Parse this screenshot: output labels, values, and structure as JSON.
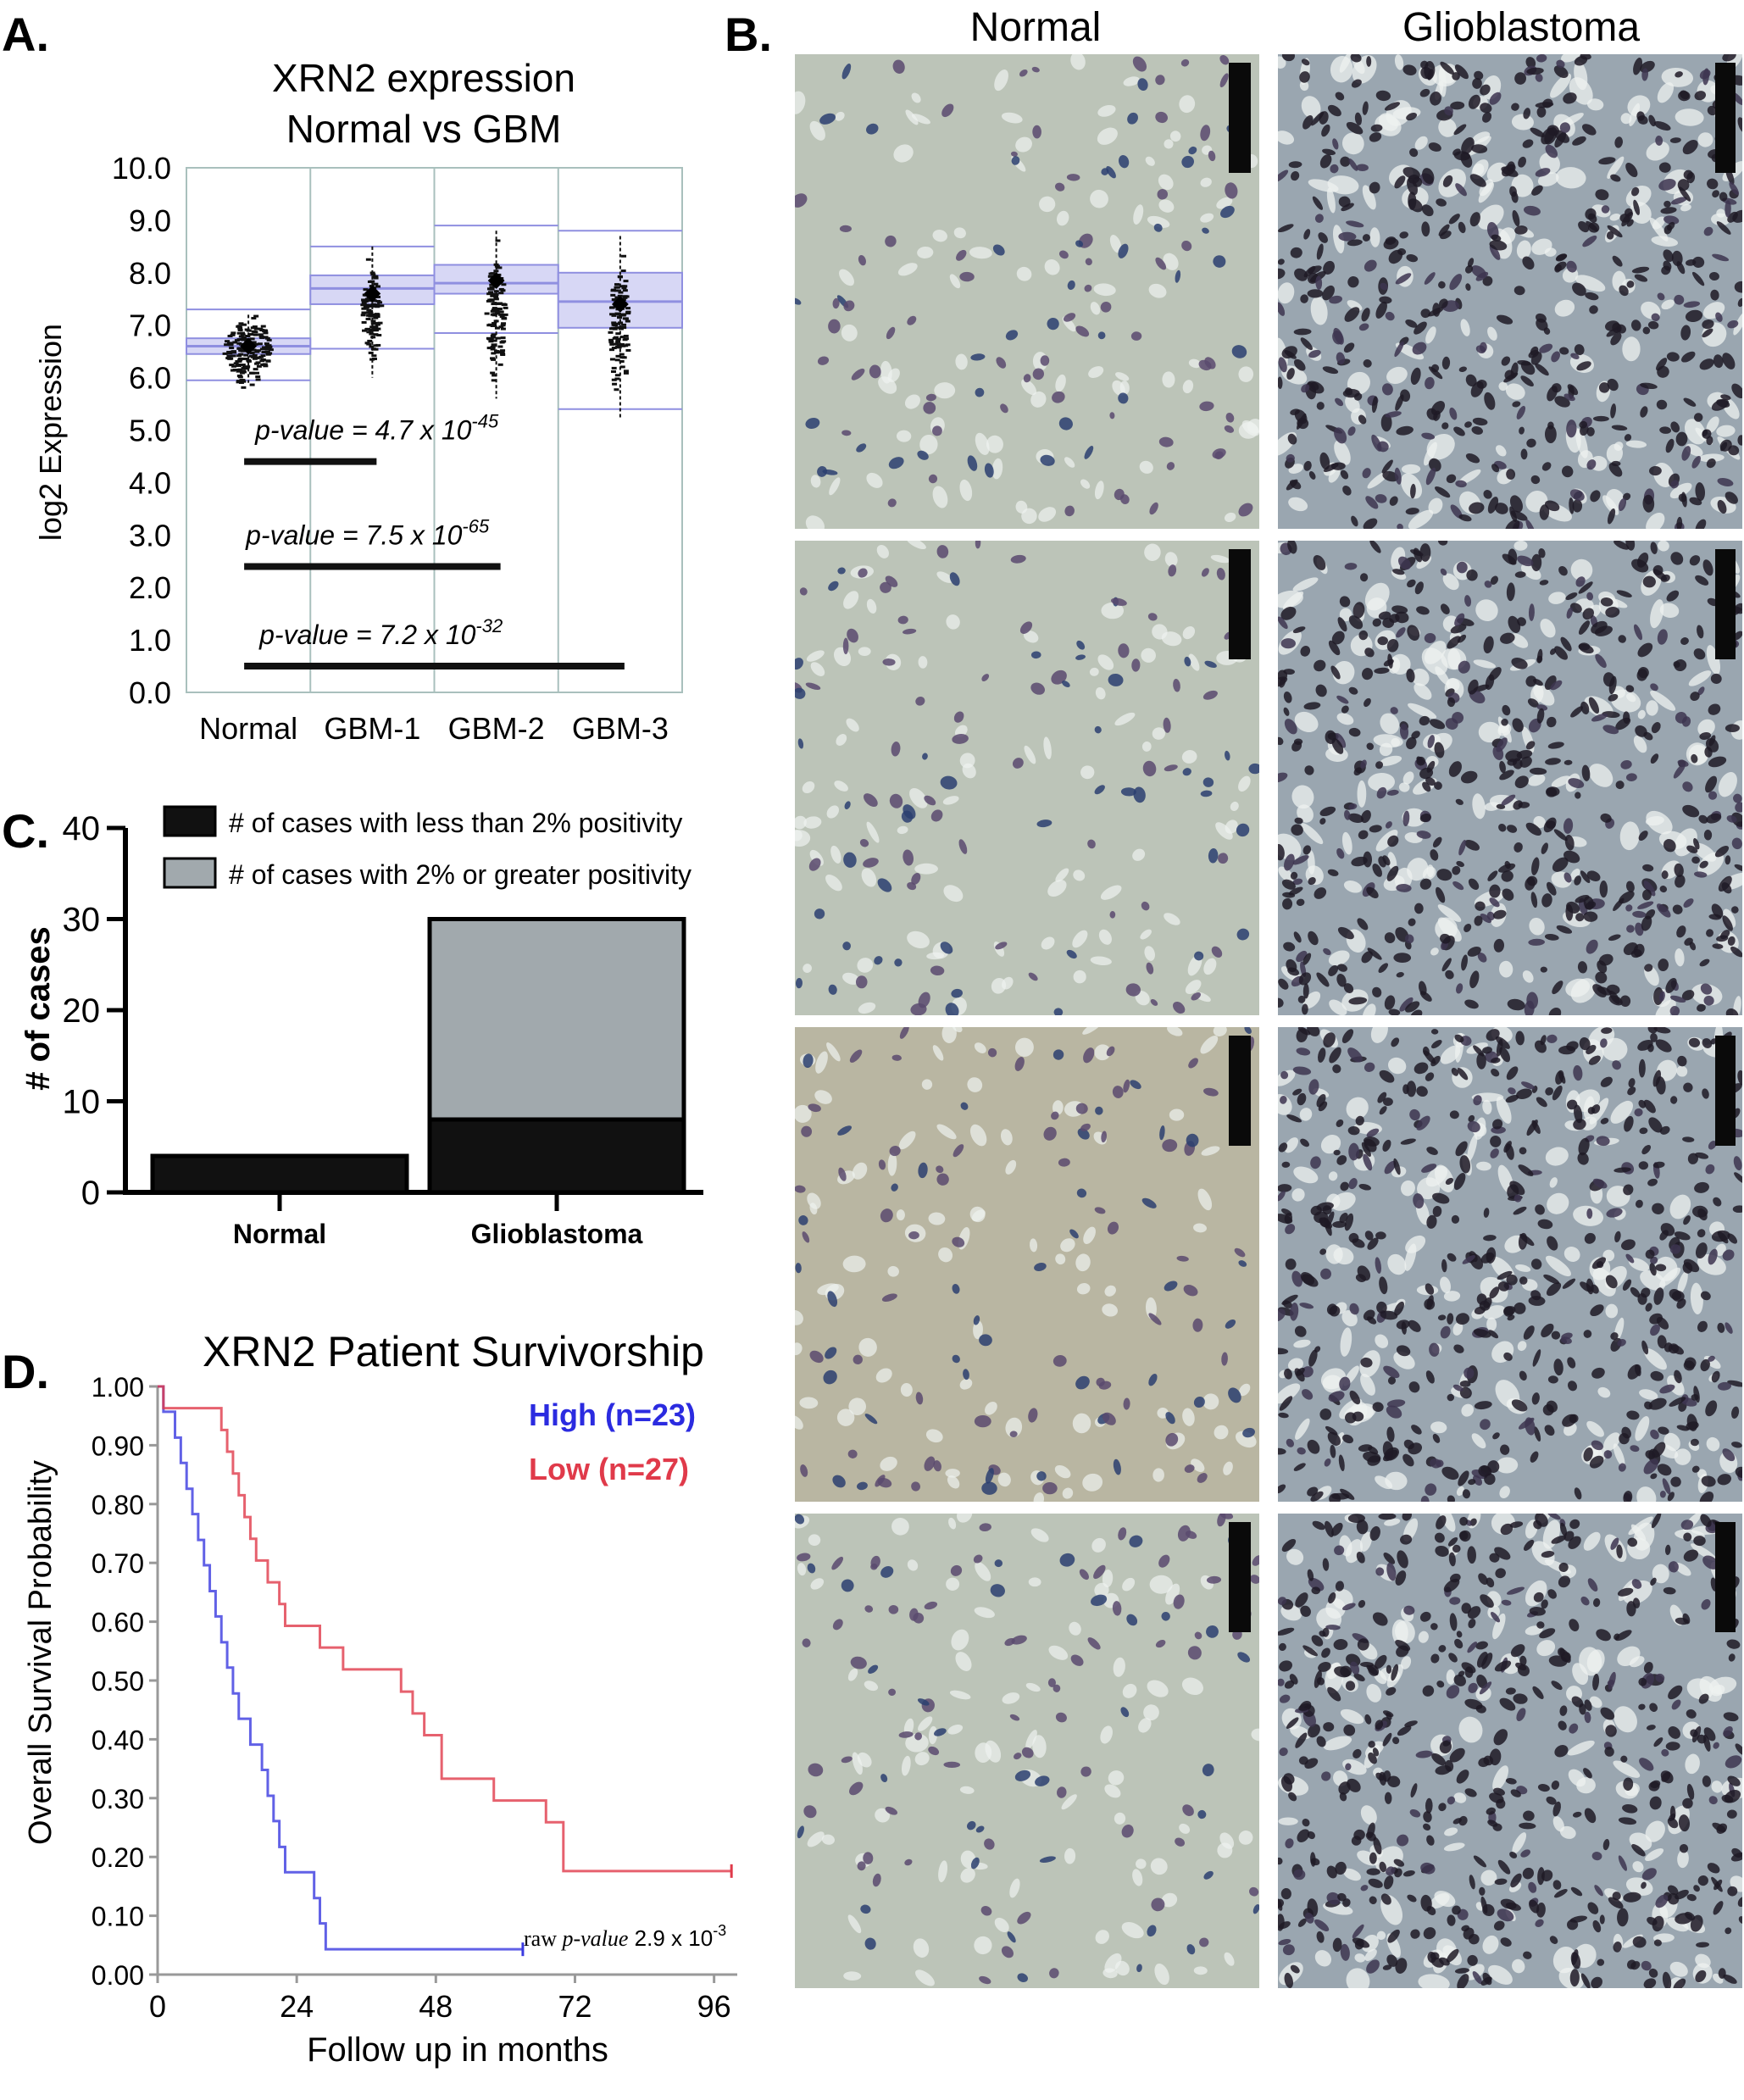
{
  "panels": {
    "a": "A.",
    "b": "B.",
    "c": "C.",
    "d": "D."
  },
  "chart_data": [
    {
      "id": "A",
      "type": "scatter",
      "title": "XRN2 expression",
      "subtitle": "Normal vs GBM",
      "ylabel": "log2 Expression",
      "xlabel": "",
      "ylim": [
        0,
        10
      ],
      "yticks": [
        "0.0",
        "1.0",
        "2.0",
        "3.0",
        "4.0",
        "5.0",
        "6.0",
        "7.0",
        "8.0",
        "9.0",
        "10.0"
      ],
      "categories": [
        "Normal",
        "GBM-1",
        "GBM-2",
        "GBM-3"
      ],
      "boxes": [
        {
          "q1": 6.45,
          "median": 6.6,
          "q3": 6.75,
          "min": 5.95,
          "max": 7.3,
          "center": 6.6
        },
        {
          "q1": 7.4,
          "median": 7.7,
          "q3": 7.95,
          "min": 6.55,
          "max": 8.5,
          "center": 7.6
        },
        {
          "q1": 7.6,
          "median": 7.8,
          "q3": 8.15,
          "min": 6.85,
          "max": 8.9,
          "center": 7.85
        },
        {
          "q1": 6.95,
          "median": 7.45,
          "q3": 8.0,
          "min": 5.4,
          "max": 8.8,
          "center": 7.4
        }
      ],
      "points_range": [
        [
          5.9,
          7.2
        ],
        [
          6.0,
          8.5
        ],
        [
          5.6,
          8.8
        ],
        [
          5.2,
          8.7
        ]
      ],
      "comparisons": [
        {
          "text_pre": "p-value = 4.7 x 10",
          "exp": "-45",
          "y": 4.4,
          "from": 0,
          "to": 1
        },
        {
          "text_pre": "p-value = 7.5 x 10",
          "exp": "-65",
          "y": 2.4,
          "from": 0,
          "to": 2
        },
        {
          "text_pre": "p-value = 7.2 x 10",
          "exp": "-32",
          "y": 0.5,
          "from": 0,
          "to": 3
        }
      ],
      "colors": {
        "box_fill": "#c9c9f2",
        "box_line": "#8f8fe0",
        "grid": "#a9c0bd"
      }
    },
    {
      "id": "C",
      "type": "bar",
      "title": "",
      "ylabel": "# of cases",
      "xlabel": "",
      "ylim": [
        0,
        40
      ],
      "yticks": [
        "0",
        "10",
        "20",
        "30",
        "40"
      ],
      "categories": [
        "Normal",
        "Glioblastoma"
      ],
      "series": [
        {
          "name": "# of cases with less than 2% positivity",
          "values": [
            4,
            8
          ],
          "color": "#111111"
        },
        {
          "name": "# of cases with 2% or greater positivity",
          "values": [
            0,
            22
          ],
          "color": "#a1a9ad"
        }
      ],
      "legend": "top-right"
    },
    {
      "id": "D",
      "type": "line",
      "title": "XRN2 Patient Survivorship",
      "xlabel": "Follow up in months",
      "ylabel": "Overall Survival Probability",
      "xlim": [
        0,
        100
      ],
      "ylim": [
        0,
        1
      ],
      "xticks": [
        "0",
        "24",
        "48",
        "72",
        "96"
      ],
      "yticks": [
        "0.00",
        "0.10",
        "0.20",
        "0.30",
        "0.40",
        "0.50",
        "0.60",
        "0.70",
        "0.80",
        "0.90",
        "1.00"
      ],
      "series": [
        {
          "name": "High (n=23)",
          "color": "#3a3ae0",
          "x": [
            0,
            1,
            3,
            4,
            5,
            6,
            7,
            8,
            9,
            10,
            11,
            12,
            13,
            14,
            16,
            18,
            19,
            20,
            21,
            22,
            23,
            27,
            28,
            29,
            63
          ],
          "y": [
            1.0,
            0.957,
            0.913,
            0.87,
            0.826,
            0.783,
            0.739,
            0.696,
            0.652,
            0.609,
            0.565,
            0.522,
            0.478,
            0.435,
            0.391,
            0.348,
            0.304,
            0.261,
            0.217,
            0.174,
            0.174,
            0.13,
            0.087,
            0.043,
            0.043
          ]
        },
        {
          "name": "Low (n=27)",
          "color": "#e03a4a",
          "x": [
            0,
            1,
            10,
            11,
            12,
            13,
            14,
            15,
            16,
            17,
            19,
            21,
            22,
            23,
            28,
            32,
            33,
            34,
            35,
            36,
            42,
            44,
            46,
            49,
            58,
            67,
            70,
            99
          ],
          "y": [
            1.0,
            0.963,
            0.963,
            0.926,
            0.889,
            0.852,
            0.815,
            0.778,
            0.741,
            0.704,
            0.667,
            0.63,
            0.593,
            0.593,
            0.556,
            0.519,
            0.519,
            0.519,
            0.519,
            0.519,
            0.481,
            0.444,
            0.407,
            0.333,
            0.296,
            0.259,
            0.176,
            0.176
          ]
        }
      ],
      "annotation": {
        "pre": "raw ",
        "italic": "p-value",
        "mid": "  2.9 x 10",
        "exp": "-3"
      }
    }
  ],
  "micrographs": {
    "col_titles": [
      "Normal",
      "Glioblastoma"
    ],
    "rows": 4,
    "colors": {
      "normal_bg": "#bcc4b8",
      "gbm_bg": "#9aa6b0",
      "nuclei_normal": "#5b4a6e",
      "nuclei_gbm": "#1e1a26",
      "scale_bar": "#0a0a0a"
    }
  }
}
